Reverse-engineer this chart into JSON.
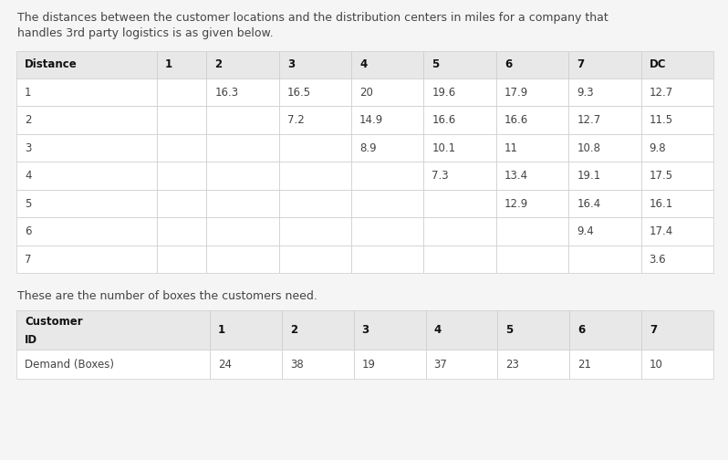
{
  "intro_text_line1": "The distances between the customer locations and the distribution centers in miles for a company that",
  "intro_text_line2": "handles 3rd party logistics is as given below.",
  "table1_header": [
    "Distance",
    "1",
    "2",
    "3",
    "4",
    "5",
    "6",
    "7",
    "DC"
  ],
  "table1_rows": [
    [
      "1",
      "",
      "16.3",
      "16.5",
      "20",
      "19.6",
      "17.9",
      "9.3",
      "12.7"
    ],
    [
      "2",
      "",
      "",
      "7.2",
      "14.9",
      "16.6",
      "16.6",
      "12.7",
      "11.5"
    ],
    [
      "3",
      "",
      "",
      "",
      "8.9",
      "10.1",
      "11",
      "10.8",
      "9.8"
    ],
    [
      "4",
      "",
      "",
      "",
      "",
      "7.3",
      "13.4",
      "19.1",
      "17.5"
    ],
    [
      "5",
      "",
      "",
      "",
      "",
      "",
      "12.9",
      "16.4",
      "16.1"
    ],
    [
      "6",
      "",
      "",
      "",
      "",
      "",
      "",
      "9.4",
      "17.4"
    ],
    [
      "7",
      "",
      "",
      "",
      "",
      "",
      "",
      "",
      "3.6"
    ]
  ],
  "middle_text": "These are the number of boxes the customers need.",
  "table2_header_line1": "Customer",
  "table2_header_line2": "ID",
  "table2_col_headers": [
    "1",
    "2",
    "3",
    "4",
    "5",
    "6",
    "7"
  ],
  "table2_row_label": "Demand (Boxes)",
  "table2_row_values": [
    "24",
    "38",
    "19",
    "37",
    "23",
    "21",
    "10"
  ],
  "header_bg": "#e8e8e8",
  "cell_bg": "#ffffff",
  "border_color": "#cccccc",
  "text_color": "#444444",
  "header_text_color": "#111111",
  "bg_color": "#f5f5f5",
  "font_size": 8.5,
  "header_font_size": 8.5,
  "fig_width": 7.98,
  "fig_height": 5.04
}
